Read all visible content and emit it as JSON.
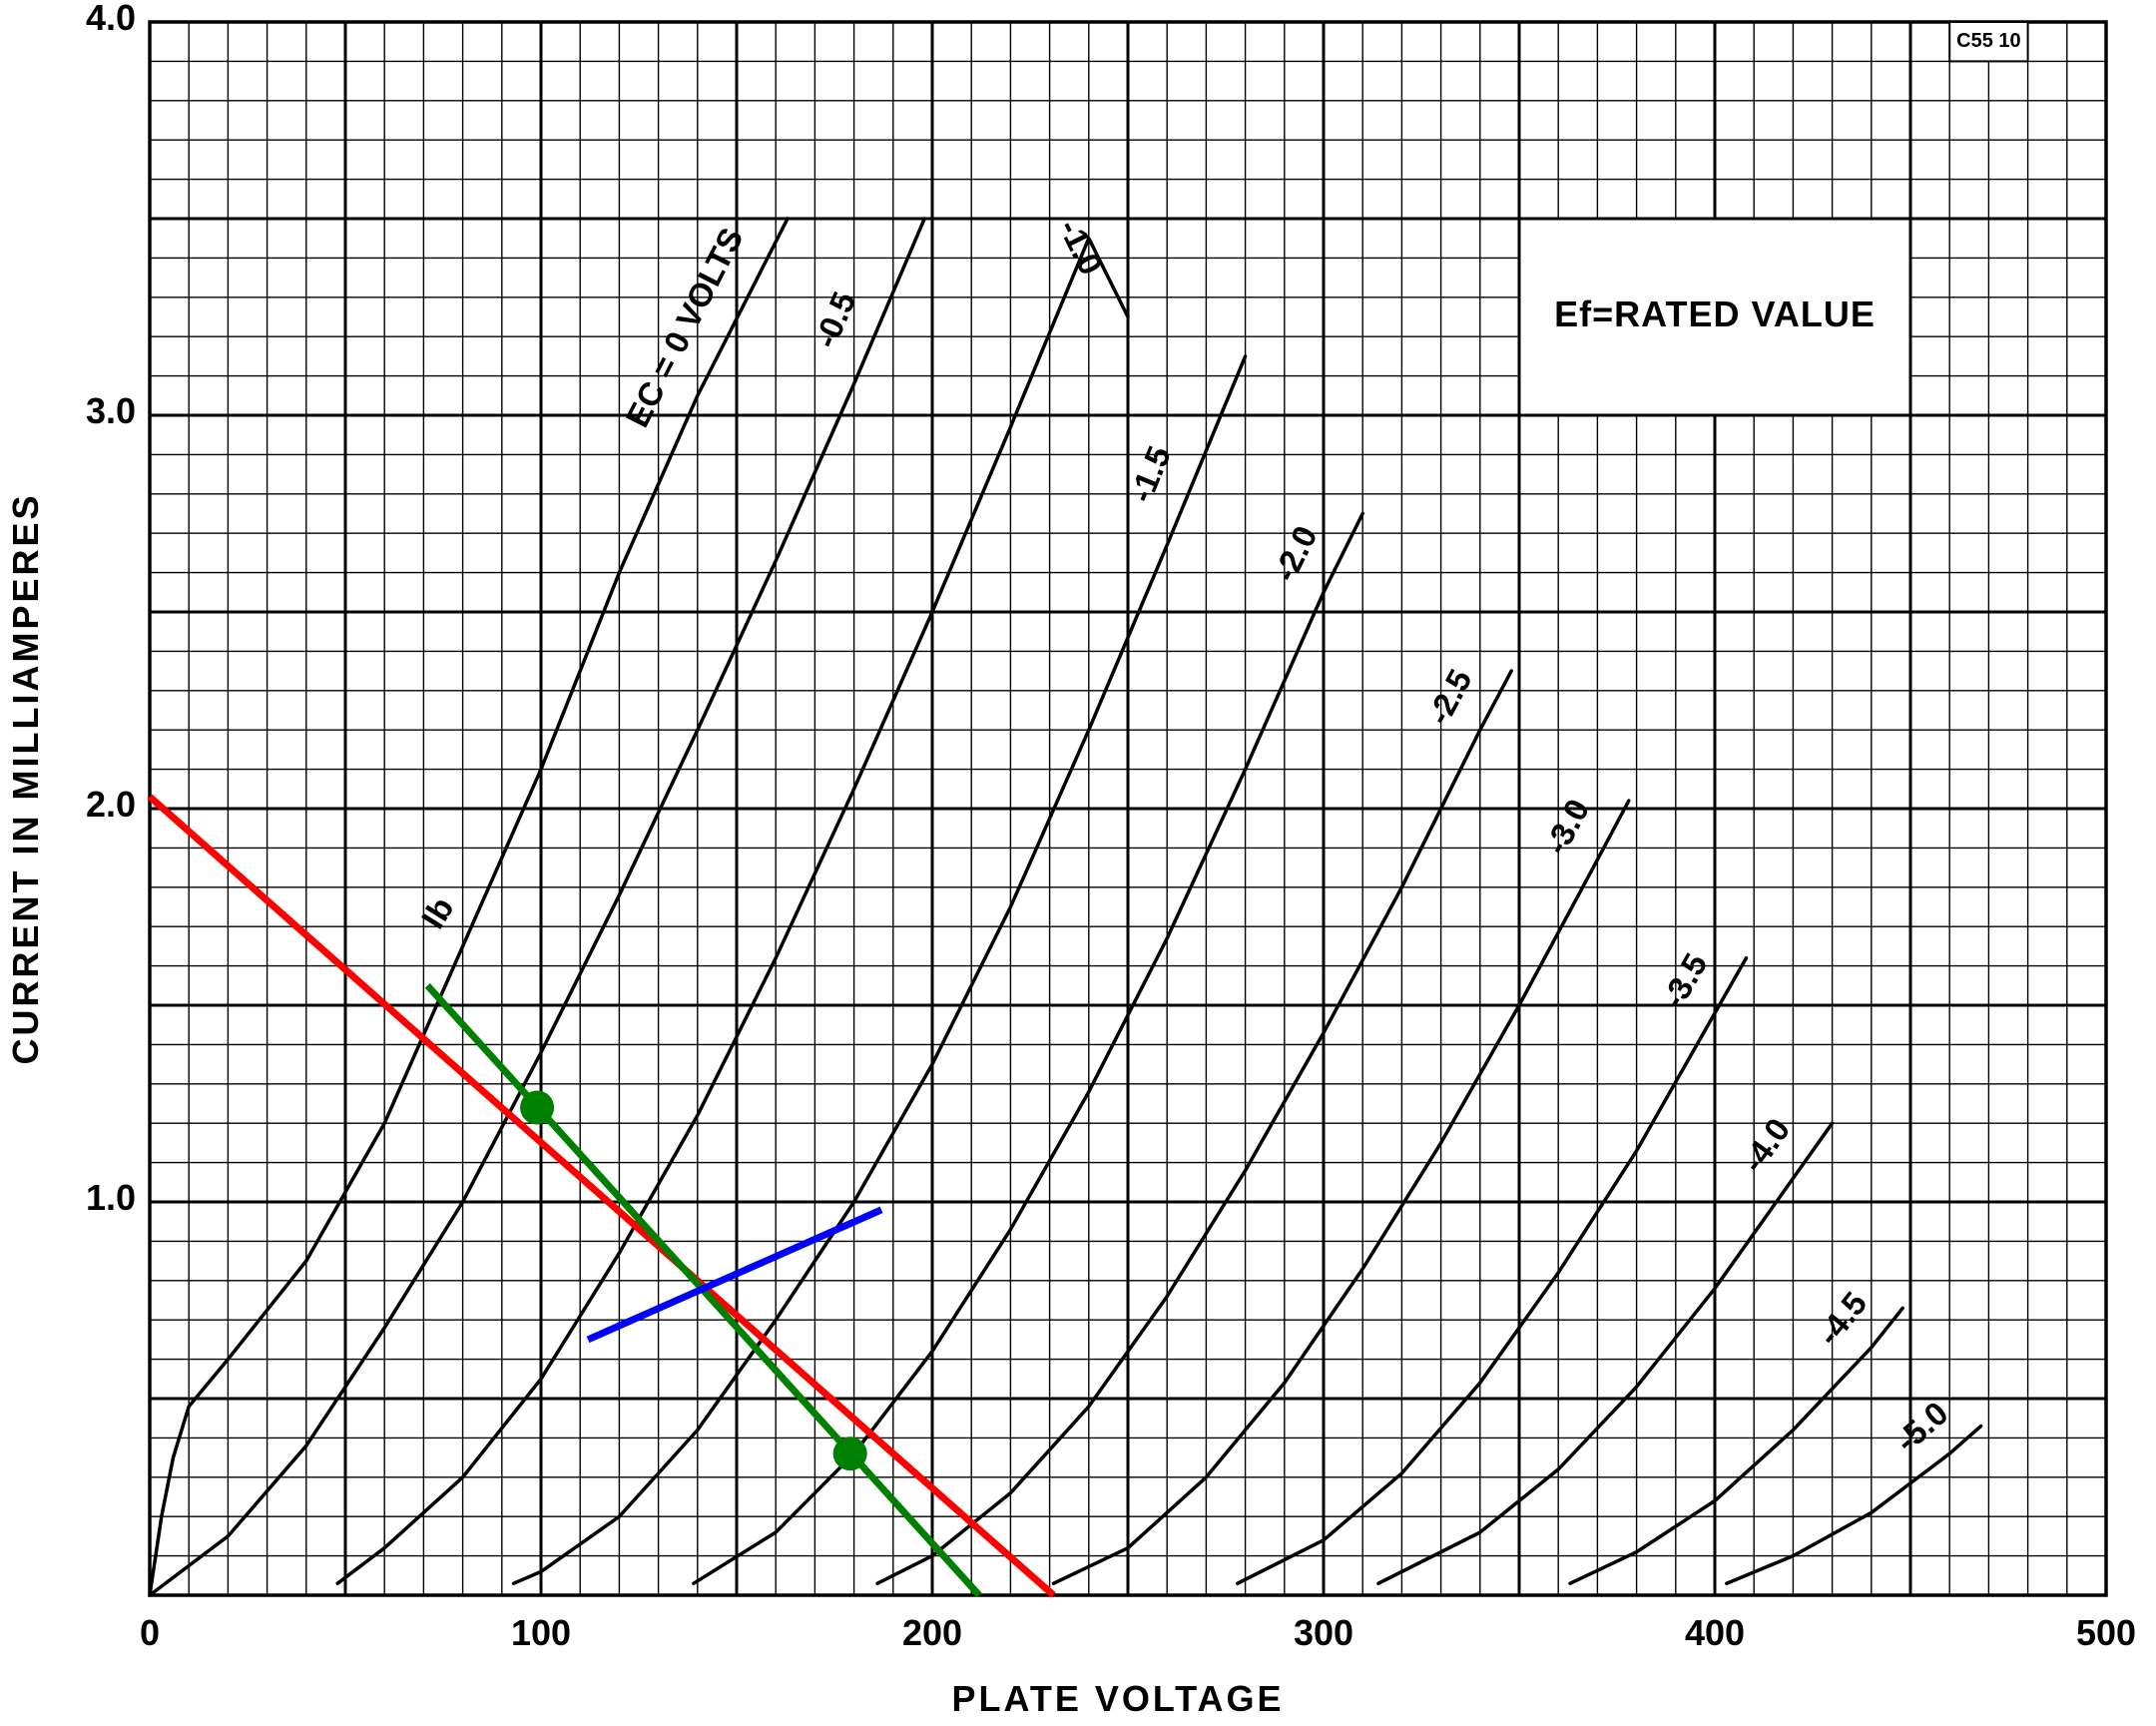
{
  "chart_data": {
    "type": "line",
    "xlabel": "PLATE VOLTAGE",
    "ylabel": "CURRENT IN MILLIAMPERES",
    "xlim": [
      0,
      500
    ],
    "ylim": [
      0,
      4.0
    ],
    "x_ticks": [
      0,
      100,
      200,
      300,
      400,
      500
    ],
    "x_tick_labels": [
      "0",
      "100",
      "200",
      "300",
      "400",
      "500"
    ],
    "y_ticks": [
      1.0,
      2.0,
      3.0,
      4.0
    ],
    "y_tick_labels": [
      "1.0",
      "2.0",
      "3.0",
      "4.0"
    ],
    "grid": true,
    "note": "Ef=RATED VALUE",
    "figure_code": "C55 10",
    "curve_axis_label": "Ib",
    "series": [
      {
        "name": "EC = 0 VOLTS",
        "label": "EC = 0 VOLTS",
        "points": [
          [
            0,
            0
          ],
          [
            3,
            0.2
          ],
          [
            6,
            0.35
          ],
          [
            10,
            0.48
          ],
          [
            20,
            0.6
          ],
          [
            40,
            0.85
          ],
          [
            60,
            1.2
          ],
          [
            80,
            1.65
          ],
          [
            100,
            2.1
          ],
          [
            120,
            2.6
          ],
          [
            140,
            3.05
          ],
          [
            163,
            3.5
          ]
        ]
      },
      {
        "name": "-0.5",
        "label": "-0.5",
        "points": [
          [
            0,
            0
          ],
          [
            20,
            0.15
          ],
          [
            40,
            0.38
          ],
          [
            60,
            0.68
          ],
          [
            80,
            1.0
          ],
          [
            100,
            1.38
          ],
          [
            120,
            1.78
          ],
          [
            140,
            2.2
          ],
          [
            160,
            2.63
          ],
          [
            180,
            3.08
          ],
          [
            198,
            3.5
          ]
        ]
      },
      {
        "name": "-1.0",
        "label": "-1.0",
        "points": [
          [
            48,
            0.03
          ],
          [
            60,
            0.12
          ],
          [
            80,
            0.3
          ],
          [
            100,
            0.55
          ],
          [
            120,
            0.87
          ],
          [
            140,
            1.22
          ],
          [
            160,
            1.62
          ],
          [
            180,
            2.05
          ],
          [
            200,
            2.5
          ],
          [
            220,
            2.97
          ],
          [
            240,
            3.45
          ],
          [
            250,
            3.25
          ]
        ]
      },
      {
        "name": "-1.5",
        "label": "-1.5",
        "points": [
          [
            93,
            0.03
          ],
          [
            100,
            0.06
          ],
          [
            120,
            0.2
          ],
          [
            140,
            0.42
          ],
          [
            160,
            0.7
          ],
          [
            180,
            1.0
          ],
          [
            200,
            1.35
          ],
          [
            220,
            1.75
          ],
          [
            240,
            2.2
          ],
          [
            260,
            2.67
          ],
          [
            280,
            3.15
          ]
        ]
      },
      {
        "name": "-2.0",
        "label": "-2.0",
        "points": [
          [
            139,
            0.03
          ],
          [
            160,
            0.16
          ],
          [
            180,
            0.36
          ],
          [
            200,
            0.62
          ],
          [
            220,
            0.93
          ],
          [
            240,
            1.28
          ],
          [
            260,
            1.67
          ],
          [
            280,
            2.1
          ],
          [
            300,
            2.55
          ],
          [
            310,
            2.75
          ]
        ]
      },
      {
        "name": "-2.5",
        "label": "-2.5",
        "points": [
          [
            186,
            0.03
          ],
          [
            200,
            0.1
          ],
          [
            220,
            0.26
          ],
          [
            240,
            0.48
          ],
          [
            260,
            0.76
          ],
          [
            280,
            1.08
          ],
          [
            300,
            1.43
          ],
          [
            320,
            1.8
          ],
          [
            340,
            2.2
          ],
          [
            348,
            2.35
          ]
        ]
      },
      {
        "name": "-3.0",
        "label": "-3.0",
        "points": [
          [
            231,
            0.03
          ],
          [
            250,
            0.12
          ],
          [
            270,
            0.3
          ],
          [
            290,
            0.54
          ],
          [
            310,
            0.83
          ],
          [
            330,
            1.15
          ],
          [
            350,
            1.5
          ],
          [
            370,
            1.87
          ],
          [
            378,
            2.02
          ]
        ]
      },
      {
        "name": "-3.5",
        "label": "-3.5",
        "points": [
          [
            278,
            0.03
          ],
          [
            300,
            0.14
          ],
          [
            320,
            0.31
          ],
          [
            340,
            0.54
          ],
          [
            360,
            0.82
          ],
          [
            380,
            1.13
          ],
          [
            400,
            1.48
          ],
          [
            408,
            1.62
          ]
        ]
      },
      {
        "name": "-4.0",
        "label": "-4.0",
        "points": [
          [
            314,
            0.03
          ],
          [
            340,
            0.16
          ],
          [
            360,
            0.32
          ],
          [
            380,
            0.53
          ],
          [
            400,
            0.78
          ],
          [
            420,
            1.06
          ],
          [
            430,
            1.2
          ]
        ]
      },
      {
        "name": "-4.5",
        "label": "-4.5",
        "points": [
          [
            363,
            0.03
          ],
          [
            380,
            0.11
          ],
          [
            400,
            0.24
          ],
          [
            420,
            0.42
          ],
          [
            440,
            0.63
          ],
          [
            448,
            0.73
          ]
        ]
      },
      {
        "name": "-5.0",
        "label": "-5.0",
        "points": [
          [
            403,
            0.03
          ],
          [
            420,
            0.1
          ],
          [
            440,
            0.21
          ],
          [
            460,
            0.36
          ],
          [
            468,
            0.43
          ]
        ]
      }
    ],
    "annotations": [
      {
        "color": "#ff0000",
        "from": [
          0,
          2.03
        ],
        "to": [
          231,
          0.0
        ]
      },
      {
        "color": "#008000",
        "from": [
          71,
          1.55
        ],
        "to": [
          212,
          0.0
        ]
      },
      {
        "color": "#0000ff",
        "from": [
          112,
          0.65
        ],
        "to": [
          187,
          0.98
        ]
      }
    ],
    "points": [
      {
        "color": "#008000",
        "x": 99,
        "y": 1.24
      },
      {
        "color": "#008000",
        "x": 179,
        "y": 0.36
      }
    ]
  }
}
